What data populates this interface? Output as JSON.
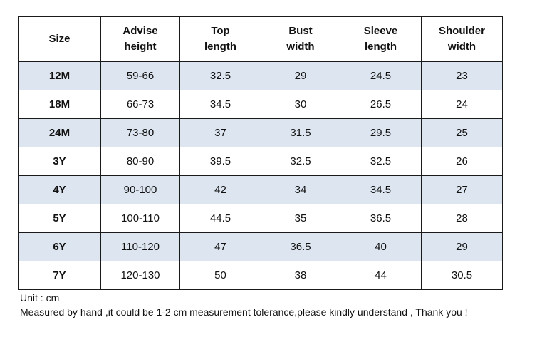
{
  "table": {
    "columns": [
      {
        "line1": "Size",
        "line2": ""
      },
      {
        "line1": "Advise",
        "line2": "height"
      },
      {
        "line1": "Top",
        "line2": "length"
      },
      {
        "line1": "Bust",
        "line2": "width"
      },
      {
        "line1": "Sleeve",
        "line2": "length"
      },
      {
        "line1": "Shoulder",
        "line2": "width"
      }
    ],
    "rows": [
      {
        "size": "12M",
        "height": "59-66",
        "top_length": "32.5",
        "bust": "29",
        "sleeve": "24.5",
        "shoulder": "23"
      },
      {
        "size": "18M",
        "height": "66-73",
        "top_length": "34.5",
        "bust": "30",
        "sleeve": "26.5",
        "shoulder": "24"
      },
      {
        "size": "24M",
        "height": "73-80",
        "top_length": "37",
        "bust": "31.5",
        "sleeve": "29.5",
        "shoulder": "25"
      },
      {
        "size": "3Y",
        "height": "80-90",
        "top_length": "39.5",
        "bust": "32.5",
        "sleeve": "32.5",
        "shoulder": "26"
      },
      {
        "size": "4Y",
        "height": "90-100",
        "top_length": "42",
        "bust": "34",
        "sleeve": "34.5",
        "shoulder": "27"
      },
      {
        "size": "5Y",
        "height": "100-110",
        "top_length": "44.5",
        "bust": "35",
        "sleeve": "36.5",
        "shoulder": "28"
      },
      {
        "size": "6Y",
        "height": "110-120",
        "top_length": "47",
        "bust": "36.5",
        "sleeve": "40",
        "shoulder": "29"
      },
      {
        "size": "7Y",
        "height": "120-130",
        "top_length": "50",
        "bust": "38",
        "sleeve": "44",
        "shoulder": "30.5"
      }
    ]
  },
  "notes": {
    "unit": "Unit : cm",
    "tolerance": "Measured by hand ,it could be 1-2 cm measurement tolerance,please kindly understand , Thank you !"
  },
  "colors": {
    "shaded_row": "#dde6f0",
    "border": "#1a1a1a"
  }
}
